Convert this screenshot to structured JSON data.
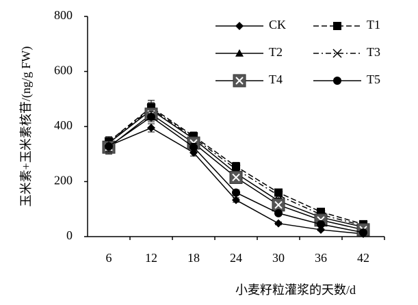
{
  "chart_data": {
    "type": "line",
    "x_label": "小麦籽粒灌浆的天数/d",
    "y_label": "玉米素+玉米素核苷/(ng/g FW)",
    "categories": [
      "6",
      "12",
      "18",
      "24",
      "30",
      "36",
      "42"
    ],
    "ylim": [
      0,
      800
    ],
    "yticks": [
      0,
      200,
      400,
      600,
      800
    ],
    "series": [
      {
        "name": "CK",
        "color": "#000000",
        "marker": "diamond",
        "dash": "solid",
        "values": [
          330,
          395,
          305,
          133,
          48,
          25,
          10
        ],
        "errors": [
          15,
          15,
          12,
          8,
          5,
          4,
          3
        ]
      },
      {
        "name": "T1",
        "color": "#000000",
        "marker": "square",
        "dash": "dashed",
        "values": [
          345,
          470,
          365,
          255,
          160,
          90,
          45
        ],
        "errors": [
          18,
          25,
          15,
          15,
          12,
          8,
          5
        ]
      },
      {
        "name": "T2",
        "color": "#000000",
        "marker": "triangle",
        "dash": "solid",
        "values": [
          340,
          460,
          355,
          230,
          130,
          70,
          35
        ],
        "errors": [
          15,
          20,
          14,
          12,
          10,
          7,
          5
        ]
      },
      {
        "name": "T3",
        "color": "#000000",
        "marker": "x",
        "dash": "dashdot",
        "values": [
          345,
          465,
          360,
          245,
          150,
          80,
          40
        ],
        "errors": [
          15,
          22,
          15,
          14,
          12,
          8,
          5
        ]
      },
      {
        "name": "T4",
        "color": "#000000",
        "marker": "boxx",
        "dash": "solid",
        "values": [
          325,
          445,
          340,
          215,
          115,
          60,
          25
        ],
        "errors": [
          25,
          20,
          15,
          12,
          10,
          6,
          4
        ]
      },
      {
        "name": "T5",
        "color": "#000000",
        "marker": "circle",
        "dash": "solid",
        "values": [
          328,
          435,
          325,
          160,
          85,
          45,
          15
        ],
        "errors": [
          20,
          18,
          14,
          10,
          8,
          5,
          3
        ]
      }
    ],
    "legend": "top-right"
  }
}
